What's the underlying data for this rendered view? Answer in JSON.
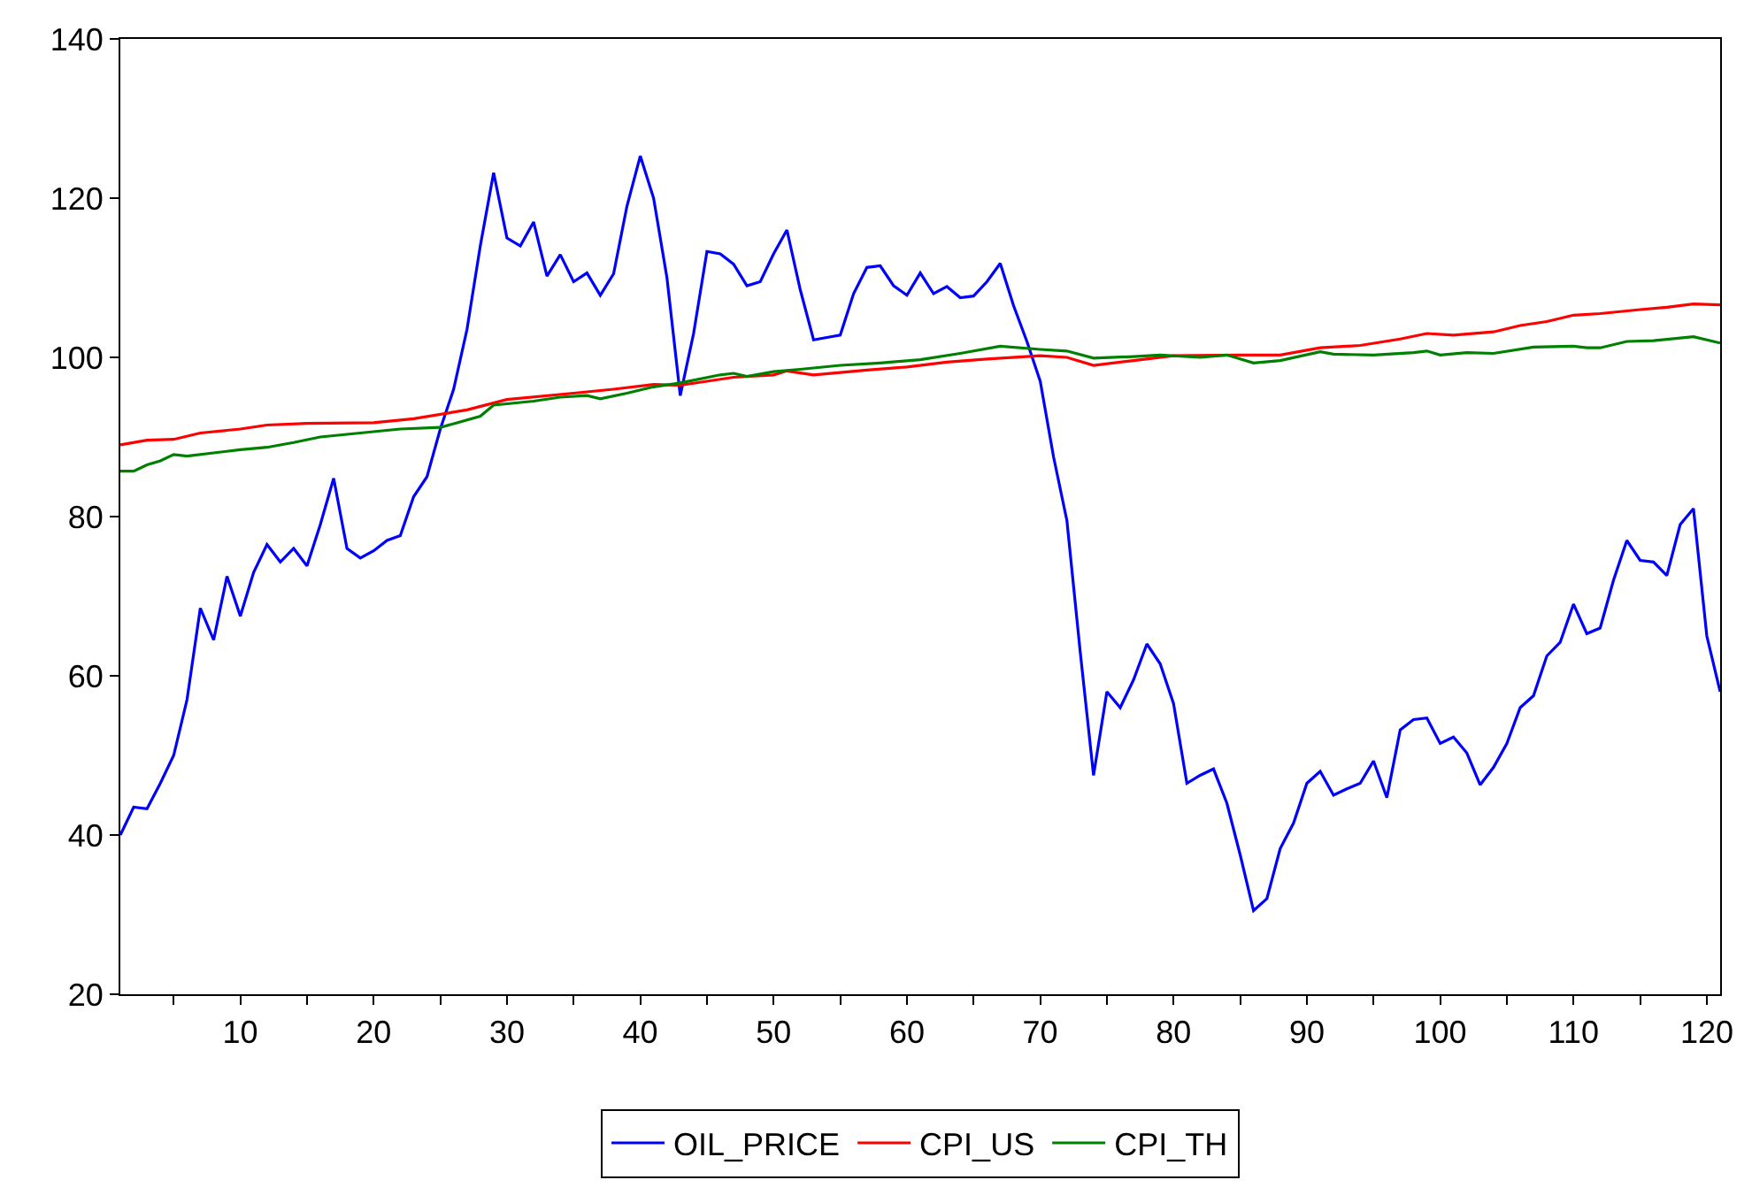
{
  "chart_data": {
    "type": "line",
    "xlim": [
      1,
      121
    ],
    "ylim": [
      20,
      140
    ],
    "xticks": [
      {
        "value": 5,
        "label": null
      },
      10,
      {
        "value": 15,
        "label": null
      },
      20,
      {
        "value": 25,
        "label": null
      },
      30,
      {
        "value": 35,
        "label": null
      },
      40,
      {
        "value": 45,
        "label": null
      },
      50,
      {
        "value": 55,
        "label": null
      },
      60,
      {
        "value": 65,
        "label": null
      },
      70,
      {
        "value": 75,
        "label": null
      },
      80,
      {
        "value": 85,
        "label": null
      },
      90,
      {
        "value": 95,
        "label": null
      },
      100,
      {
        "value": 105,
        "label": null
      },
      110,
      {
        "value": 115,
        "label": null
      },
      120
    ],
    "yticks": [
      20,
      40,
      60,
      80,
      100,
      120,
      140
    ],
    "grid": false,
    "legend": "bottom",
    "marker": "none",
    "line_style": "solid",
    "series": [
      {
        "name": "OIL_PRICE",
        "color": "#0000ff",
        "x": [
          1,
          2,
          3,
          4,
          5,
          6,
          7,
          8,
          9,
          10,
          11,
          12,
          13,
          14,
          15,
          16,
          17,
          18,
          19,
          20,
          21,
          22,
          23,
          24,
          25,
          26,
          27,
          28,
          29,
          30,
          31,
          32,
          33,
          34,
          35,
          36,
          37,
          38,
          39,
          40,
          41,
          42,
          43,
          44,
          45,
          46,
          47,
          48,
          49,
          50,
          51,
          52,
          53,
          54,
          55,
          56,
          57,
          58,
          59,
          60,
          61,
          62,
          63,
          64,
          65,
          66,
          67,
          68,
          69,
          70,
          71,
          72,
          73,
          74,
          75,
          76,
          77,
          78,
          79,
          80,
          81,
          82,
          83,
          84,
          85,
          86,
          87,
          88,
          89,
          90,
          91,
          92,
          93,
          94,
          95,
          96,
          97,
          98,
          99,
          100,
          101,
          102,
          103,
          104,
          105,
          106,
          107,
          108,
          109,
          110,
          111,
          112,
          113,
          114,
          115,
          116,
          117,
          118,
          119,
          120,
          121
        ],
        "values": [
          40,
          43.5,
          43.3,
          46.5,
          50,
          57,
          68.5,
          64.5,
          72.5,
          67.5,
          73,
          76.5,
          74.3,
          76,
          73.8,
          79,
          84.8,
          76,
          74.8,
          75.7,
          77,
          77.6,
          82.5,
          85,
          91,
          96,
          103.5,
          114,
          123.2,
          115,
          114,
          117,
          110.2,
          112.9,
          109.5,
          110.6,
          107.8,
          110.5,
          119,
          125.3,
          120,
          110,
          95.2,
          103,
          113.3,
          113,
          111.7,
          109,
          109.5,
          113,
          116,
          108.5,
          102.2,
          102.5,
          102.8,
          108,
          111.3,
          111.5,
          109,
          107.8,
          110.6,
          108,
          108.9,
          107.5,
          107.7,
          109.5,
          111.8,
          106.5,
          102,
          97,
          87.5,
          79.5,
          63,
          47.5,
          58,
          56,
          59.5,
          64,
          61.5,
          56.5,
          46.5,
          47.5,
          48.3,
          44,
          37.5,
          30.5,
          32,
          38.3,
          41.5,
          46.5,
          48,
          45,
          45.8,
          46.5,
          49.3,
          44.7,
          53.2,
          54.5,
          54.7,
          51.5,
          52.3,
          50.3,
          46.3,
          48.5,
          51.5,
          56,
          57.5,
          62.5,
          64.2,
          69,
          65.3,
          66,
          72,
          77,
          74.5,
          74.3,
          72.6,
          79,
          81,
          65,
          58
        ]
      },
      {
        "name": "CPI_US",
        "color": "#ff0000",
        "x": [
          1,
          3,
          5,
          7,
          10,
          12,
          15,
          20,
          23,
          27,
          30,
          35,
          38,
          41,
          43,
          47,
          50,
          51,
          53,
          57,
          60,
          63,
          66,
          70,
          72,
          74,
          77,
          80,
          85,
          88,
          91,
          94,
          97,
          99,
          101,
          104,
          106,
          108,
          110,
          112,
          115,
          117,
          119,
          121
        ],
        "values": [
          89,
          89.6,
          89.7,
          90.5,
          91,
          91.5,
          91.7,
          91.8,
          92.3,
          93.4,
          94.7,
          95.5,
          96,
          96.6,
          96.5,
          97.5,
          97.8,
          98.3,
          97.8,
          98.4,
          98.8,
          99.4,
          99.8,
          100.2,
          100,
          99,
          99.6,
          100.2,
          100.3,
          100.3,
          101.2,
          101.5,
          102.3,
          103,
          102.8,
          103.2,
          104,
          104.5,
          105.3,
          105.5,
          106,
          106.3,
          106.7,
          106.6
        ]
      },
      {
        "name": "CPI_TH",
        "color": "#008000",
        "x": [
          1,
          2,
          3,
          4,
          5,
          6,
          8,
          10,
          12,
          14,
          16,
          19,
          22,
          25,
          28,
          29,
          32,
          34,
          36,
          37,
          39,
          41,
          43,
          46,
          47,
          48,
          50,
          52,
          55,
          58,
          61,
          64,
          67,
          70,
          72,
          74,
          77,
          79,
          82,
          84,
          86,
          88,
          91,
          92,
          95,
          98,
          99,
          100,
          102,
          104,
          107,
          110,
          111,
          112,
          114,
          116,
          119,
          121
        ],
        "values": [
          85.7,
          85.7,
          86.5,
          87,
          87.8,
          87.6,
          88,
          88.4,
          88.7,
          89.3,
          90,
          90.5,
          91,
          91.2,
          92.6,
          94,
          94.5,
          95,
          95.2,
          94.8,
          95.5,
          96.3,
          96.8,
          97.8,
          98,
          97.6,
          98.2,
          98.5,
          99,
          99.3,
          99.7,
          100.5,
          101.4,
          101,
          100.8,
          99.9,
          100.1,
          100.3,
          100,
          100.3,
          99.3,
          99.6,
          100.7,
          100.4,
          100.3,
          100.6,
          100.8,
          100.3,
          100.6,
          100.5,
          101.3,
          101.4,
          101.2,
          101.2,
          102,
          102.1,
          102.6,
          101.8
        ]
      }
    ]
  }
}
